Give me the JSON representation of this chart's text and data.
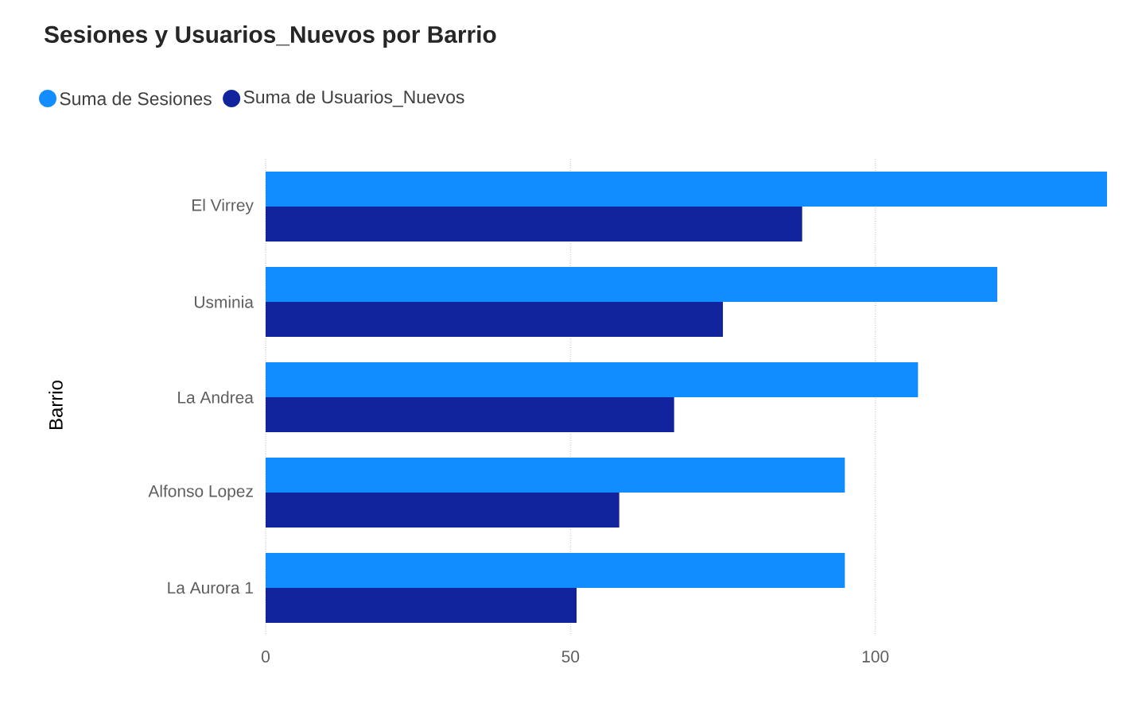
{
  "chart_data": {
    "type": "bar",
    "orientation": "horizontal",
    "title": "Sesiones y Usuarios_Nuevos por Barrio",
    "ylabel": "Barrio",
    "categories": [
      "El Virrey",
      "Usminia",
      "La Andrea",
      "Alfonso Lopez",
      "La Aurora 1"
    ],
    "series": [
      {
        "name": "Suma de Sesiones",
        "color": "#118dff",
        "values": [
          138,
          120,
          107,
          95,
          95
        ]
      },
      {
        "name": "Suma de Usuarios_Nuevos",
        "color": "#12239e",
        "values": [
          88,
          75,
          67,
          58,
          51
        ]
      }
    ],
    "xlim": [
      0,
      138
    ],
    "xticks": [
      0,
      50,
      100
    ],
    "grid": "x",
    "legend": "top left"
  }
}
